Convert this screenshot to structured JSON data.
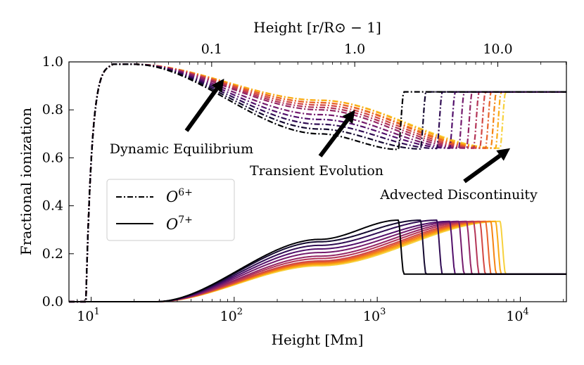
{
  "chart_data": {
    "type": "line",
    "xlabel": "Height [Mm]",
    "ylabel": "Fractional ionization",
    "top_xlabel": "Height [r/R⊙ − 1]",
    "x_scale": "log",
    "xlim": [
      7,
      21000
    ],
    "ylim": [
      0.0,
      1.0
    ],
    "x_ticks": [
      {
        "value": 10,
        "base": "10",
        "exp": "1"
      },
      {
        "value": 100,
        "base": "10",
        "exp": "2"
      },
      {
        "value": 1000,
        "base": "10",
        "exp": "3"
      },
      {
        "value": 10000,
        "base": "10",
        "exp": "4"
      }
    ],
    "y_ticks": [
      "0.0",
      "0.2",
      "0.4",
      "0.6",
      "0.8",
      "1.0"
    ],
    "top_x_ticks": [
      {
        "label": "0.1",
        "value": 69.6
      },
      {
        "label": "1.0",
        "value": 696
      },
      {
        "label": "10.0",
        "value": 6960
      }
    ],
    "grid": false,
    "legend": {
      "placement": "center-left",
      "entries": [
        {
          "label": "O",
          "sup": "6+",
          "style": "dashdot"
        },
        {
          "label": "O",
          "sup": "7+",
          "style": "solid"
        }
      ]
    },
    "series_count": 12,
    "colormap": [
      "#000004",
      "#1b0c41",
      "#4a0c6b",
      "#781c6d",
      "#a52c60",
      "#cf4446",
      "#ed6925",
      "#fb9b06",
      "#f7d13d"
    ],
    "series_front_height": [
      1400,
      2000,
      2600,
      3200,
      3700,
      4200,
      4700,
      5200,
      5700,
      6200,
      6700,
      7200
    ],
    "o6_series_minimum": [
      0.635,
      0.637,
      0.639,
      0.64,
      0.64,
      0.64,
      0.64,
      0.64,
      0.64,
      0.64,
      0.64,
      0.64
    ],
    "o6_series_midvalue": [
      0.7,
      0.72,
      0.74,
      0.76,
      0.78,
      0.8,
      0.81,
      0.82,
      0.83,
      0.83,
      0.84,
      0.84
    ],
    "o7_series_maximum": [
      0.34,
      0.34,
      0.34,
      0.335,
      0.335,
      0.335,
      0.335,
      0.335,
      0.335,
      0.335,
      0.335,
      0.335
    ],
    "o7_series_midvalue": [
      0.26,
      0.25,
      0.235,
      0.22,
      0.205,
      0.19,
      0.18,
      0.17,
      0.165,
      0.16,
      0.155,
      0.15
    ],
    "o6_series_start_height": 9.2,
    "o6_series_peak": 0.99,
    "o6_discontinuity_level": 0.875,
    "o7_discontinuity_level": 0.115,
    "annotations": [
      {
        "text": "Dynamic Equilibrium",
        "arrow_target": [
          85,
          0.93
        ]
      },
      {
        "text": "Transient Evolution",
        "arrow_target": [
          700,
          0.8
        ]
      },
      {
        "text": "Advected Discontinuity",
        "arrow_target": [
          8500,
          0.64
        ]
      }
    ]
  }
}
